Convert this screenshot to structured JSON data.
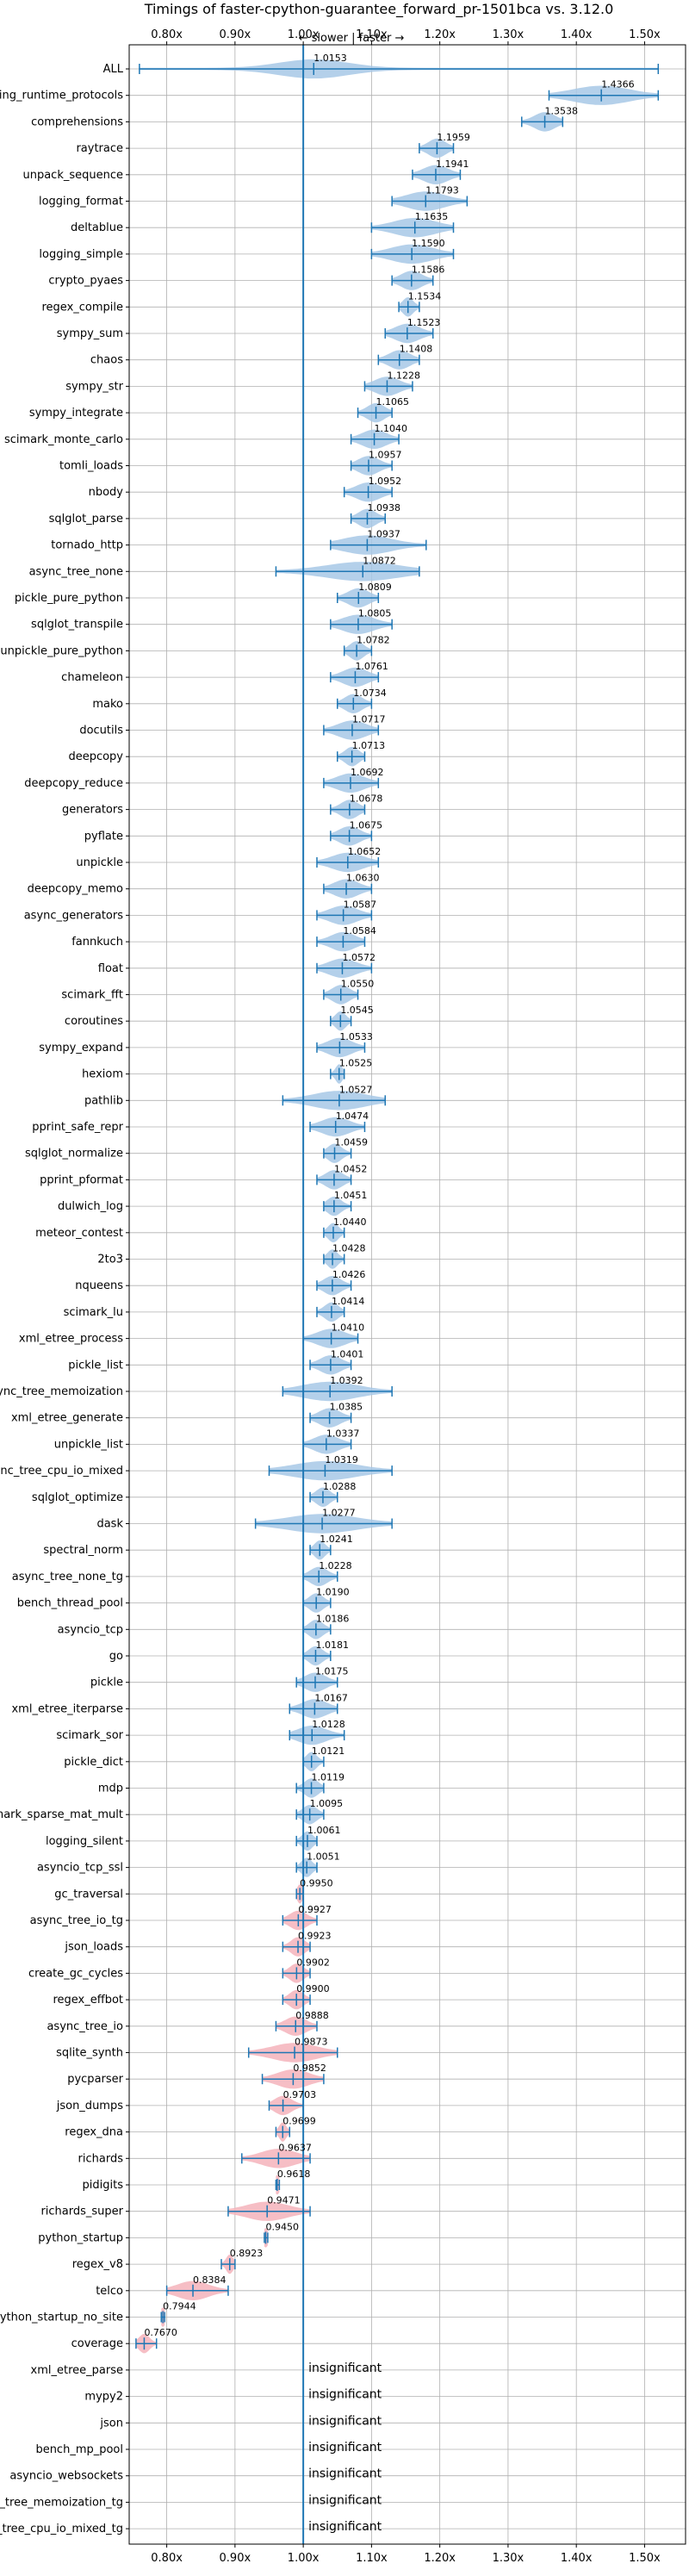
{
  "chart_data": {
    "type": "violin",
    "title": "Timings of faster-cpython-guarantee_forward_pr-1501bca vs. 3.12.0",
    "annotation": "← slower | faster →",
    "xlim": [
      0.745,
      1.56
    ],
    "x_ticks": [
      {
        "value": 0.8,
        "label": "0.80x"
      },
      {
        "value": 0.9,
        "label": "0.90x"
      },
      {
        "value": 1.0,
        "label": "1.00x"
      },
      {
        "value": 1.1,
        "label": "1.10x"
      },
      {
        "value": 1.2,
        "label": "1.20x"
      },
      {
        "value": 1.3,
        "label": "1.30x"
      },
      {
        "value": 1.4,
        "label": "1.40x"
      },
      {
        "value": 1.5,
        "label": "1.50x"
      }
    ],
    "reference_line": 1.0,
    "colors": {
      "faster": "#a7c8e6",
      "slower": "#f4b3bb",
      "whisker": "#1f77b4",
      "reference": "#1f77b4"
    },
    "benchmarks": [
      {
        "name": "ALL",
        "value": 1.0153,
        "label": "1.0153",
        "min": 0.76,
        "max": 1.52,
        "spread": 0.05,
        "significant": true
      },
      {
        "name": "typing_runtime_protocols",
        "value": 1.4366,
        "label": "1.4366",
        "min": 1.36,
        "max": 1.52,
        "significant": true
      },
      {
        "name": "comprehensions",
        "value": 1.3538,
        "label": "1.3538",
        "min": 1.32,
        "max": 1.38,
        "significant": true
      },
      {
        "name": "raytrace",
        "value": 1.1959,
        "label": "1.1959",
        "min": 1.17,
        "max": 1.22,
        "significant": true
      },
      {
        "name": "unpack_sequence",
        "value": 1.1941,
        "label": "1.1941",
        "min": 1.16,
        "max": 1.23,
        "significant": true
      },
      {
        "name": "logging_format",
        "value": 1.1793,
        "label": "1.1793",
        "min": 1.13,
        "max": 1.24,
        "significant": true
      },
      {
        "name": "deltablue",
        "value": 1.1635,
        "label": "1.1635",
        "min": 1.1,
        "max": 1.22,
        "significant": true
      },
      {
        "name": "logging_simple",
        "value": 1.159,
        "label": "1.1590",
        "min": 1.1,
        "max": 1.22,
        "significant": true
      },
      {
        "name": "crypto_pyaes",
        "value": 1.1586,
        "label": "1.1586",
        "min": 1.13,
        "max": 1.19,
        "significant": true
      },
      {
        "name": "regex_compile",
        "value": 1.1534,
        "label": "1.1534",
        "min": 1.14,
        "max": 1.17,
        "significant": true
      },
      {
        "name": "sympy_sum",
        "value": 1.1523,
        "label": "1.1523",
        "min": 1.12,
        "max": 1.19,
        "significant": true
      },
      {
        "name": "chaos",
        "value": 1.1408,
        "label": "1.1408",
        "min": 1.11,
        "max": 1.17,
        "significant": true
      },
      {
        "name": "sympy_str",
        "value": 1.1228,
        "label": "1.1228",
        "min": 1.09,
        "max": 1.16,
        "significant": true
      },
      {
        "name": "sympy_integrate",
        "value": 1.1065,
        "label": "1.1065",
        "min": 1.08,
        "max": 1.13,
        "significant": true
      },
      {
        "name": "scimark_monte_carlo",
        "value": 1.104,
        "label": "1.1040",
        "min": 1.07,
        "max": 1.14,
        "significant": true
      },
      {
        "name": "tomli_loads",
        "value": 1.0957,
        "label": "1.0957",
        "min": 1.07,
        "max": 1.13,
        "significant": true
      },
      {
        "name": "nbody",
        "value": 1.0952,
        "label": "1.0952",
        "min": 1.06,
        "max": 1.13,
        "significant": true
      },
      {
        "name": "sqlglot_parse",
        "value": 1.0938,
        "label": "1.0938",
        "min": 1.07,
        "max": 1.12,
        "significant": true
      },
      {
        "name": "tornado_http",
        "value": 1.0937,
        "label": "1.0937",
        "min": 1.04,
        "max": 1.18,
        "significant": true
      },
      {
        "name": "async_tree_none",
        "value": 1.0872,
        "label": "1.0872",
        "min": 0.96,
        "max": 1.17,
        "significant": true
      },
      {
        "name": "pickle_pure_python",
        "value": 1.0809,
        "label": "1.0809",
        "min": 1.05,
        "max": 1.11,
        "significant": true
      },
      {
        "name": "sqlglot_transpile",
        "value": 1.0805,
        "label": "1.0805",
        "min": 1.04,
        "max": 1.13,
        "significant": true
      },
      {
        "name": "unpickle_pure_python",
        "value": 1.0782,
        "label": "1.0782",
        "min": 1.06,
        "max": 1.1,
        "significant": true
      },
      {
        "name": "chameleon",
        "value": 1.0761,
        "label": "1.0761",
        "min": 1.04,
        "max": 1.11,
        "significant": true
      },
      {
        "name": "mako",
        "value": 1.0734,
        "label": "1.0734",
        "min": 1.05,
        "max": 1.1,
        "significant": true
      },
      {
        "name": "docutils",
        "value": 1.0717,
        "label": "1.0717",
        "min": 1.03,
        "max": 1.11,
        "significant": true
      },
      {
        "name": "deepcopy",
        "value": 1.0713,
        "label": "1.0713",
        "min": 1.05,
        "max": 1.09,
        "significant": true
      },
      {
        "name": "deepcopy_reduce",
        "value": 1.0692,
        "label": "1.0692",
        "min": 1.03,
        "max": 1.11,
        "significant": true
      },
      {
        "name": "generators",
        "value": 1.0678,
        "label": "1.0678",
        "min": 1.04,
        "max": 1.09,
        "significant": true
      },
      {
        "name": "pyflate",
        "value": 1.0675,
        "label": "1.0675",
        "min": 1.04,
        "max": 1.1,
        "significant": true
      },
      {
        "name": "unpickle",
        "value": 1.0652,
        "label": "1.0652",
        "min": 1.02,
        "max": 1.11,
        "significant": true
      },
      {
        "name": "deepcopy_memo",
        "value": 1.063,
        "label": "1.0630",
        "min": 1.03,
        "max": 1.1,
        "significant": true
      },
      {
        "name": "async_generators",
        "value": 1.0587,
        "label": "1.0587",
        "min": 1.02,
        "max": 1.1,
        "significant": true
      },
      {
        "name": "fannkuch",
        "value": 1.0584,
        "label": "1.0584",
        "min": 1.02,
        "max": 1.09,
        "significant": true
      },
      {
        "name": "float",
        "value": 1.0572,
        "label": "1.0572",
        "min": 1.02,
        "max": 1.1,
        "significant": true
      },
      {
        "name": "scimark_fft",
        "value": 1.055,
        "label": "1.0550",
        "min": 1.03,
        "max": 1.08,
        "significant": true
      },
      {
        "name": "coroutines",
        "value": 1.0545,
        "label": "1.0545",
        "min": 1.04,
        "max": 1.07,
        "significant": true
      },
      {
        "name": "sympy_expand",
        "value": 1.0533,
        "label": "1.0533",
        "min": 1.02,
        "max": 1.09,
        "significant": true
      },
      {
        "name": "hexiom",
        "value": 1.0525,
        "label": "1.0525",
        "min": 1.04,
        "max": 1.06,
        "significant": true
      },
      {
        "name": "pathlib",
        "value": 1.0527,
        "label": "1.0527",
        "min": 0.97,
        "max": 1.12,
        "significant": true
      },
      {
        "name": "pprint_safe_repr",
        "value": 1.0474,
        "label": "1.0474",
        "min": 1.01,
        "max": 1.09,
        "significant": true
      },
      {
        "name": "sqlglot_normalize",
        "value": 1.0459,
        "label": "1.0459",
        "min": 1.03,
        "max": 1.07,
        "significant": true
      },
      {
        "name": "pprint_pformat",
        "value": 1.0452,
        "label": "1.0452",
        "min": 1.02,
        "max": 1.07,
        "significant": true
      },
      {
        "name": "dulwich_log",
        "value": 1.0451,
        "label": "1.0451",
        "min": 1.03,
        "max": 1.07,
        "significant": true
      },
      {
        "name": "meteor_contest",
        "value": 1.044,
        "label": "1.0440",
        "min": 1.03,
        "max": 1.06,
        "significant": true
      },
      {
        "name": "2to3",
        "value": 1.0428,
        "label": "1.0428",
        "min": 1.03,
        "max": 1.06,
        "significant": true
      },
      {
        "name": "nqueens",
        "value": 1.0426,
        "label": "1.0426",
        "min": 1.02,
        "max": 1.07,
        "significant": true
      },
      {
        "name": "scimark_lu",
        "value": 1.0414,
        "label": "1.0414",
        "min": 1.02,
        "max": 1.06,
        "significant": true
      },
      {
        "name": "xml_etree_process",
        "value": 1.041,
        "label": "1.0410",
        "min": 1.0,
        "max": 1.08,
        "significant": true
      },
      {
        "name": "pickle_list",
        "value": 1.0401,
        "label": "1.0401",
        "min": 1.01,
        "max": 1.07,
        "significant": true
      },
      {
        "name": "async_tree_memoization",
        "value": 1.0392,
        "label": "1.0392",
        "min": 0.97,
        "max": 1.13,
        "significant": true
      },
      {
        "name": "xml_etree_generate",
        "value": 1.0385,
        "label": "1.0385",
        "min": 1.01,
        "max": 1.07,
        "significant": true
      },
      {
        "name": "unpickle_list",
        "value": 1.0337,
        "label": "1.0337",
        "min": 1.0,
        "max": 1.07,
        "significant": true
      },
      {
        "name": "async_tree_cpu_io_mixed",
        "value": 1.0319,
        "label": "1.0319",
        "min": 0.95,
        "max": 1.13,
        "significant": true
      },
      {
        "name": "sqlglot_optimize",
        "value": 1.0288,
        "label": "1.0288",
        "min": 1.01,
        "max": 1.05,
        "significant": true
      },
      {
        "name": "dask",
        "value": 1.0277,
        "label": "1.0277",
        "min": 0.93,
        "max": 1.13,
        "significant": true
      },
      {
        "name": "spectral_norm",
        "value": 1.0241,
        "label": "1.0241",
        "min": 1.01,
        "max": 1.04,
        "significant": true
      },
      {
        "name": "async_tree_none_tg",
        "value": 1.0228,
        "label": "1.0228",
        "min": 1.0,
        "max": 1.05,
        "significant": true
      },
      {
        "name": "bench_thread_pool",
        "value": 1.019,
        "label": "1.0190",
        "min": 1.0,
        "max": 1.04,
        "significant": true
      },
      {
        "name": "asyncio_tcp",
        "value": 1.0186,
        "label": "1.0186",
        "min": 1.0,
        "max": 1.04,
        "significant": true
      },
      {
        "name": "go",
        "value": 1.0181,
        "label": "1.0181",
        "min": 1.0,
        "max": 1.04,
        "significant": true
      },
      {
        "name": "pickle",
        "value": 1.0175,
        "label": "1.0175",
        "min": 0.99,
        "max": 1.05,
        "significant": true
      },
      {
        "name": "xml_etree_iterparse",
        "value": 1.0167,
        "label": "1.0167",
        "min": 0.98,
        "max": 1.05,
        "significant": true
      },
      {
        "name": "scimark_sor",
        "value": 1.0128,
        "label": "1.0128",
        "min": 0.98,
        "max": 1.06,
        "significant": true
      },
      {
        "name": "pickle_dict",
        "value": 1.0121,
        "label": "1.0121",
        "min": 1.0,
        "max": 1.03,
        "significant": true
      },
      {
        "name": "mdp",
        "value": 1.0119,
        "label": "1.0119",
        "min": 0.99,
        "max": 1.03,
        "significant": true
      },
      {
        "name": "scimark_sparse_mat_mult",
        "value": 1.0095,
        "label": "1.0095",
        "min": 0.99,
        "max": 1.03,
        "significant": true
      },
      {
        "name": "logging_silent",
        "value": 1.0061,
        "label": "1.0061",
        "min": 0.99,
        "max": 1.02,
        "significant": true
      },
      {
        "name": "asyncio_tcp_ssl",
        "value": 1.0051,
        "label": "1.0051",
        "min": 0.99,
        "max": 1.02,
        "significant": true
      },
      {
        "name": "gc_traversal",
        "value": 0.995,
        "label": "0.9950",
        "min": 0.99,
        "max": 1.0,
        "significant": true
      },
      {
        "name": "async_tree_io_tg",
        "value": 0.9927,
        "label": "0.9927",
        "min": 0.97,
        "max": 1.02,
        "significant": true
      },
      {
        "name": "json_loads",
        "value": 0.9923,
        "label": "0.9923",
        "min": 0.97,
        "max": 1.01,
        "significant": true
      },
      {
        "name": "create_gc_cycles",
        "value": 0.9902,
        "label": "0.9902",
        "min": 0.97,
        "max": 1.01,
        "significant": true
      },
      {
        "name": "regex_effbot",
        "value": 0.99,
        "label": "0.9900",
        "min": 0.97,
        "max": 1.01,
        "significant": true
      },
      {
        "name": "async_tree_io",
        "value": 0.9888,
        "label": "0.9888",
        "min": 0.96,
        "max": 1.02,
        "significant": true
      },
      {
        "name": "sqlite_synth",
        "value": 0.9873,
        "label": "0.9873",
        "min": 0.92,
        "max": 1.05,
        "significant": true
      },
      {
        "name": "pycparser",
        "value": 0.9852,
        "label": "0.9852",
        "min": 0.94,
        "max": 1.03,
        "significant": true
      },
      {
        "name": "json_dumps",
        "value": 0.9703,
        "label": "0.9703",
        "min": 0.95,
        "max": 1.0,
        "significant": true
      },
      {
        "name": "regex_dna",
        "value": 0.9699,
        "label": "0.9699",
        "min": 0.96,
        "max": 0.98,
        "significant": true
      },
      {
        "name": "richards",
        "value": 0.9637,
        "label": "0.9637",
        "min": 0.91,
        "max": 1.01,
        "significant": true
      },
      {
        "name": "pidigits",
        "value": 0.9618,
        "label": "0.9618",
        "min": 0.96,
        "max": 0.965,
        "significant": true
      },
      {
        "name": "richards_super",
        "value": 0.9471,
        "label": "0.9471",
        "min": 0.89,
        "max": 1.01,
        "significant": true
      },
      {
        "name": "python_startup",
        "value": 0.945,
        "label": "0.9450",
        "min": 0.943,
        "max": 0.948,
        "significant": true
      },
      {
        "name": "regex_v8",
        "value": 0.8923,
        "label": "0.8923",
        "min": 0.88,
        "max": 0.9,
        "significant": true
      },
      {
        "name": "telco",
        "value": 0.8384,
        "label": "0.8384",
        "min": 0.8,
        "max": 0.89,
        "significant": true
      },
      {
        "name": "python_startup_no_site",
        "value": 0.7944,
        "label": "0.7944",
        "min": 0.792,
        "max": 0.797,
        "significant": true
      },
      {
        "name": "coverage",
        "value": 0.767,
        "label": "0.7670",
        "min": 0.755,
        "max": 0.785,
        "significant": true
      },
      {
        "name": "xml_etree_parse",
        "label": "insignificant",
        "significant": false
      },
      {
        "name": "mypy2",
        "label": "insignificant",
        "significant": false
      },
      {
        "name": "json",
        "label": "insignificant",
        "significant": false
      },
      {
        "name": "bench_mp_pool",
        "label": "insignificant",
        "significant": false
      },
      {
        "name": "asyncio_websockets",
        "label": "insignificant",
        "significant": false
      },
      {
        "name": "async_tree_memoization_tg",
        "label": "insignificant",
        "significant": false
      },
      {
        "name": "async_tree_cpu_io_mixed_tg",
        "label": "insignificant",
        "significant": false
      }
    ]
  }
}
